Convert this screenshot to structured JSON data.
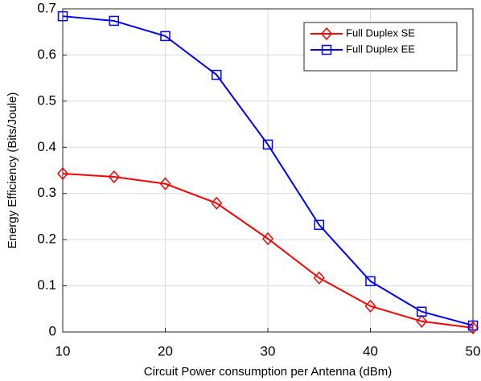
{
  "chart_data": {
    "type": "line",
    "xlabel": "Circuit Power consumption per Antenna (dBm)",
    "ylabel": "Energy Efficiency (Bits/Joule)",
    "x": [
      10,
      15,
      20,
      25,
      30,
      35,
      40,
      45,
      50
    ],
    "series": [
      {
        "name": "Full Duplex SE",
        "color": "#ff0000",
        "marker": "diamond",
        "values": [
          0.343,
          0.336,
          0.321,
          0.279,
          0.202,
          0.117,
          0.056,
          0.023,
          0.009
        ]
      },
      {
        "name": "Full Duplex EE",
        "color": "#0000ff",
        "marker": "square",
        "values": [
          0.684,
          0.674,
          0.641,
          0.557,
          0.406,
          0.232,
          0.11,
          0.044,
          0.014
        ]
      }
    ],
    "xlim": [
      10,
      50
    ],
    "xticks": [
      10,
      20,
      30,
      40,
      50
    ],
    "ylim": [
      0,
      0.7
    ],
    "yticks": [
      0,
      0.1,
      0.2,
      0.3,
      0.4,
      0.5,
      0.6,
      0.7
    ],
    "grid": true,
    "legend": "upper right"
  }
}
